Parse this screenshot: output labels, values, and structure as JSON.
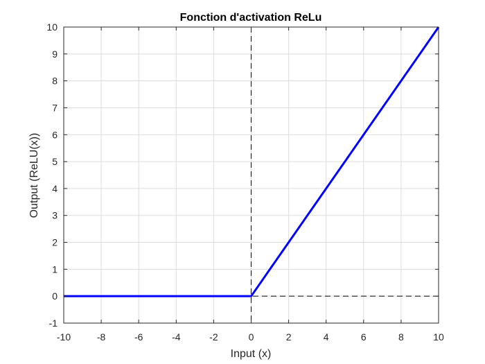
{
  "chart_data": {
    "type": "line",
    "title": "Fonction d'activation ReLu",
    "xlabel": "Input (x)",
    "ylabel": "Output (ReLU(x))",
    "xlim": [
      -10,
      10
    ],
    "ylim": [
      -1,
      10
    ],
    "xticks": [
      -10,
      -8,
      -6,
      -4,
      -2,
      0,
      2,
      4,
      6,
      8,
      10
    ],
    "yticks": [
      -1,
      0,
      1,
      2,
      3,
      4,
      5,
      6,
      7,
      8,
      9,
      10
    ],
    "grid": true,
    "series": [
      {
        "x": [
          -10,
          0,
          10
        ],
        "y": [
          0,
          0,
          10
        ],
        "color": "#0000ff"
      }
    ],
    "reference_lines": [
      {
        "orientation": "vertical",
        "value": 0,
        "style": "dashed",
        "color": "#000000"
      },
      {
        "orientation": "horizontal",
        "value": 0,
        "style": "dashed",
        "color": "#000000"
      }
    ],
    "colors": {
      "background": "#ffffff",
      "axes": "#262626",
      "grid": "#dcdcdc"
    }
  }
}
